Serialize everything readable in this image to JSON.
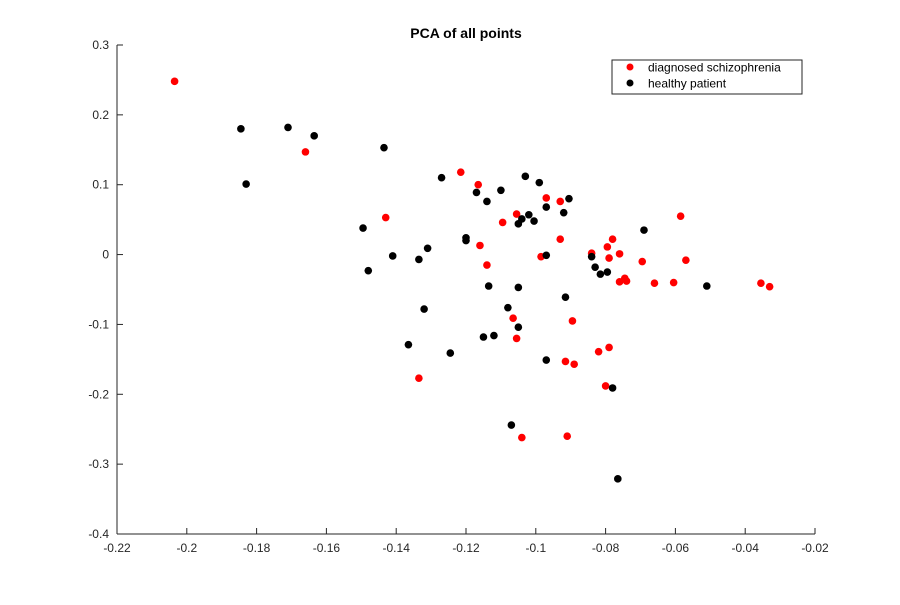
{
  "chart_data": {
    "type": "scatter",
    "title": "PCA of all points",
    "xlabel": "",
    "ylabel": "",
    "xlim": [
      -0.22,
      -0.02
    ],
    "ylim": [
      -0.4,
      0.3
    ],
    "xticks": [
      -0.22,
      -0.2,
      -0.18,
      -0.16,
      -0.14,
      -0.12,
      -0.1,
      -0.08,
      -0.06,
      -0.04,
      -0.02
    ],
    "xtick_labels": [
      "-0.22",
      "-0.2",
      "-0.18",
      "-0.16",
      "-0.14",
      "-0.12",
      "-0.1",
      "-0.08",
      "-0.06",
      "-0.04",
      "-0.02"
    ],
    "yticks": [
      -0.4,
      -0.3,
      -0.2,
      -0.1,
      0,
      0.1,
      0.2,
      0.3
    ],
    "ytick_labels": [
      "-0.4",
      "-0.3",
      "-0.2",
      "-0.1",
      "0",
      "0.1",
      "0.2",
      "0.3"
    ],
    "grid": false,
    "legend_position": "top-right",
    "series": [
      {
        "name": "diagnosed schizophrenia",
        "color": "#ff0000",
        "points": [
          [
            -0.2035,
            0.248
          ],
          [
            -0.166,
            0.147
          ],
          [
            -0.143,
            0.053
          ],
          [
            -0.1215,
            0.118
          ],
          [
            -0.1165,
            0.1
          ],
          [
            -0.116,
            0.013
          ],
          [
            -0.114,
            -0.015
          ],
          [
            -0.1095,
            0.046
          ],
          [
            -0.1055,
            0.058
          ],
          [
            -0.1065,
            -0.091
          ],
          [
            -0.1055,
            -0.12
          ],
          [
            -0.1335,
            -0.177
          ],
          [
            -0.104,
            -0.262
          ],
          [
            -0.0985,
            -0.003
          ],
          [
            -0.097,
            0.081
          ],
          [
            -0.093,
            0.076
          ],
          [
            -0.093,
            0.022
          ],
          [
            -0.084,
            0.002
          ],
          [
            -0.0895,
            -0.095
          ],
          [
            -0.0915,
            -0.153
          ],
          [
            -0.089,
            -0.157
          ],
          [
            -0.091,
            -0.26
          ],
          [
            -0.082,
            -0.139
          ],
          [
            -0.079,
            -0.133
          ],
          [
            -0.0795,
            0.011
          ],
          [
            -0.078,
            0.022
          ],
          [
            -0.079,
            -0.005
          ],
          [
            -0.076,
            0.001
          ],
          [
            -0.076,
            -0.039
          ],
          [
            -0.0745,
            -0.034
          ],
          [
            -0.074,
            -0.038
          ],
          [
            -0.08,
            -0.188
          ],
          [
            -0.0695,
            -0.01
          ],
          [
            -0.066,
            -0.041
          ],
          [
            -0.0605,
            -0.04
          ],
          [
            -0.0585,
            0.055
          ],
          [
            -0.057,
            -0.008
          ],
          [
            -0.0355,
            -0.041
          ],
          [
            -0.033,
            -0.046
          ]
        ]
      },
      {
        "name": "healthy patient",
        "color": "#000000",
        "points": [
          [
            -0.1845,
            0.18
          ],
          [
            -0.183,
            0.101
          ],
          [
            -0.171,
            0.182
          ],
          [
            -0.1635,
            0.17
          ],
          [
            -0.1435,
            0.153
          ],
          [
            -0.1495,
            0.038
          ],
          [
            -0.148,
            -0.023
          ],
          [
            -0.141,
            -0.002
          ],
          [
            -0.1335,
            -0.007
          ],
          [
            -0.131,
            0.009
          ],
          [
            -0.132,
            -0.078
          ],
          [
            -0.1365,
            -0.129
          ],
          [
            -0.1245,
            -0.141
          ],
          [
            -0.127,
            0.11
          ],
          [
            -0.12,
            0.024
          ],
          [
            -0.12,
            0.02
          ],
          [
            -0.117,
            0.089
          ],
          [
            -0.114,
            0.076
          ],
          [
            -0.11,
            0.092
          ],
          [
            -0.1135,
            -0.045
          ],
          [
            -0.115,
            -0.118
          ],
          [
            -0.112,
            -0.116
          ],
          [
            -0.108,
            -0.076
          ],
          [
            -0.105,
            -0.104
          ],
          [
            -0.107,
            -0.244
          ],
          [
            -0.105,
            0.044
          ],
          [
            -0.104,
            0.051
          ],
          [
            -0.102,
            0.057
          ],
          [
            -0.103,
            0.112
          ],
          [
            -0.099,
            0.103
          ],
          [
            -0.1005,
            0.048
          ],
          [
            -0.105,
            -0.047
          ],
          [
            -0.097,
            0.068
          ],
          [
            -0.097,
            -0.001
          ],
          [
            -0.097,
            -0.151
          ],
          [
            -0.0905,
            0.08
          ],
          [
            -0.092,
            0.06
          ],
          [
            -0.0915,
            -0.061
          ],
          [
            -0.084,
            -0.003
          ],
          [
            -0.083,
            -0.018
          ],
          [
            -0.0815,
            -0.028
          ],
          [
            -0.0795,
            -0.025
          ],
          [
            -0.078,
            -0.191
          ],
          [
            -0.0765,
            -0.321
          ],
          [
            -0.069,
            0.035
          ],
          [
            -0.051,
            -0.045
          ]
        ]
      }
    ]
  }
}
